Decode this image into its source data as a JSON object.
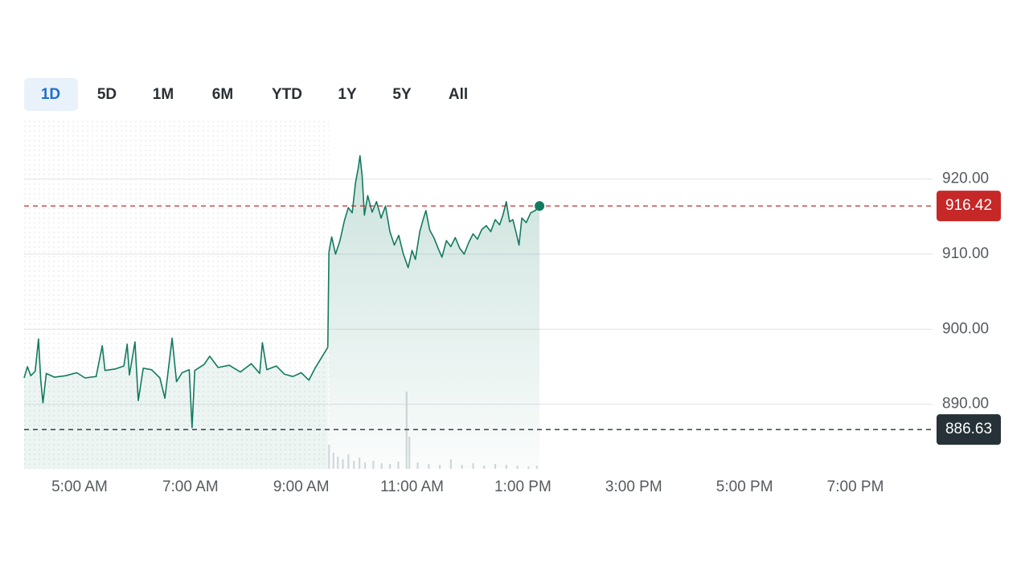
{
  "tabs": [
    "1D",
    "5D",
    "1M",
    "6M",
    "YTD",
    "1Y",
    "5Y",
    "All"
  ],
  "selected_tab": 0,
  "chart_data": {
    "type": "line",
    "xlim": [
      4,
      20
    ],
    "ylim": [
      881.4,
      928.0
    ],
    "xticks": [
      {
        "value": 5,
        "label": "5:00 AM"
      },
      {
        "value": 7,
        "label": "7:00 AM"
      },
      {
        "value": 9,
        "label": "9:00 AM"
      },
      {
        "value": 11,
        "label": "11:00 AM"
      },
      {
        "value": 13,
        "label": "1:00 PM"
      },
      {
        "value": 15,
        "label": "3:00 PM"
      },
      {
        "value": 17,
        "label": "5:00 PM"
      },
      {
        "value": 19,
        "label": "7:00 PM"
      }
    ],
    "yticks": [
      {
        "value": 890,
        "label": "890.00"
      },
      {
        "value": 900,
        "label": "900.00"
      },
      {
        "value": 910,
        "label": "910.00"
      },
      {
        "value": 920,
        "label": "920.00"
      }
    ],
    "grid": true,
    "series": [
      {
        "color": "#137a5f",
        "x": [
          4.0,
          4.06,
          4.12,
          4.2,
          4.26,
          4.3,
          4.34,
          4.4,
          4.55,
          4.75,
          4.95,
          5.1,
          5.3,
          5.41,
          5.46,
          5.65,
          5.8,
          5.86,
          5.9,
          6.0,
          6.06,
          6.15,
          6.3,
          6.45,
          6.54,
          6.67,
          6.75,
          6.85,
          6.98,
          7.03,
          7.08,
          7.25,
          7.35,
          7.5,
          7.7,
          7.9,
          8.1,
          8.25,
          8.3,
          8.38,
          8.55,
          8.7,
          8.85,
          9.0,
          9.14,
          9.25,
          9.48
        ],
        "values": [
          893.5,
          895.0,
          893.8,
          894.4,
          898.7,
          893.2,
          890.2,
          894.1,
          893.6,
          893.8,
          894.2,
          893.5,
          893.7,
          897.8,
          894.5,
          894.7,
          895.1,
          898.0,
          893.9,
          898.3,
          890.5,
          894.8,
          894.6,
          893.5,
          890.8,
          898.8,
          893.0,
          894.2,
          894.6,
          886.9,
          894.5,
          895.3,
          896.4,
          894.9,
          895.2,
          894.3,
          895.4,
          894.1,
          898.2,
          894.6,
          895.1,
          894.0,
          893.7,
          894.2,
          893.2,
          894.8,
          897.6
        ]
      },
      {
        "color": "#137a5f",
        "x": [
          9.5,
          9.55,
          9.62,
          9.7,
          9.78,
          9.85,
          9.92,
          9.98,
          10.03,
          10.06,
          10.1,
          10.14,
          10.2,
          10.28,
          10.36,
          10.44,
          10.52,
          10.6,
          10.68,
          10.76,
          10.84,
          10.93,
          11.0,
          11.06,
          11.14,
          11.2,
          11.25,
          11.32,
          11.4,
          11.48,
          11.54,
          11.62,
          11.7,
          11.78,
          11.86,
          11.94,
          12.02,
          12.1,
          12.18,
          12.26,
          12.34,
          12.42,
          12.5,
          12.58,
          12.64,
          12.7,
          12.76,
          12.82,
          12.88,
          12.93,
          12.98,
          13.06,
          13.14,
          13.22,
          13.3
        ],
        "values": [
          910.3,
          912.3,
          910.0,
          911.8,
          914.5,
          916.2,
          915.5,
          919.5,
          921.5,
          923.1,
          920.4,
          915.2,
          917.8,
          915.6,
          917.0,
          914.8,
          916.4,
          913.0,
          911.2,
          912.5,
          910.1,
          908.2,
          910.5,
          909.3,
          913.0,
          914.6,
          915.8,
          913.2,
          912.1,
          910.6,
          909.6,
          911.8,
          911.0,
          912.2,
          910.8,
          910.0,
          911.5,
          912.7,
          912.0,
          913.3,
          913.8,
          913.0,
          914.6,
          913.9,
          915.2,
          917.0,
          914.3,
          914.6,
          912.8,
          911.2,
          914.8,
          914.2,
          915.5,
          915.8,
          916.42
        ]
      }
    ],
    "volume": {
      "lim": [
        0,
        100
      ],
      "color": "#d5d9dc",
      "x": [
        9.5,
        9.58,
        9.66,
        9.75,
        9.85,
        9.95,
        10.05,
        10.15,
        10.3,
        10.45,
        10.6,
        10.75,
        10.9,
        10.95,
        11.1,
        11.3,
        11.5,
        11.7,
        11.9,
        12.1,
        12.3,
        12.5,
        12.7,
        12.9,
        13.1,
        13.25
      ],
      "values": [
        30,
        20,
        15,
        12,
        18,
        10,
        14,
        8,
        10,
        7,
        6,
        9,
        96,
        40,
        8,
        6,
        5,
        12,
        5,
        7,
        4,
        6,
        5,
        4,
        3,
        4
      ]
    },
    "reference_lines": [
      {
        "value": 916.42,
        "color": "#c62828"
      },
      {
        "value": 886.63,
        "color": "#263238"
      }
    ]
  }
}
